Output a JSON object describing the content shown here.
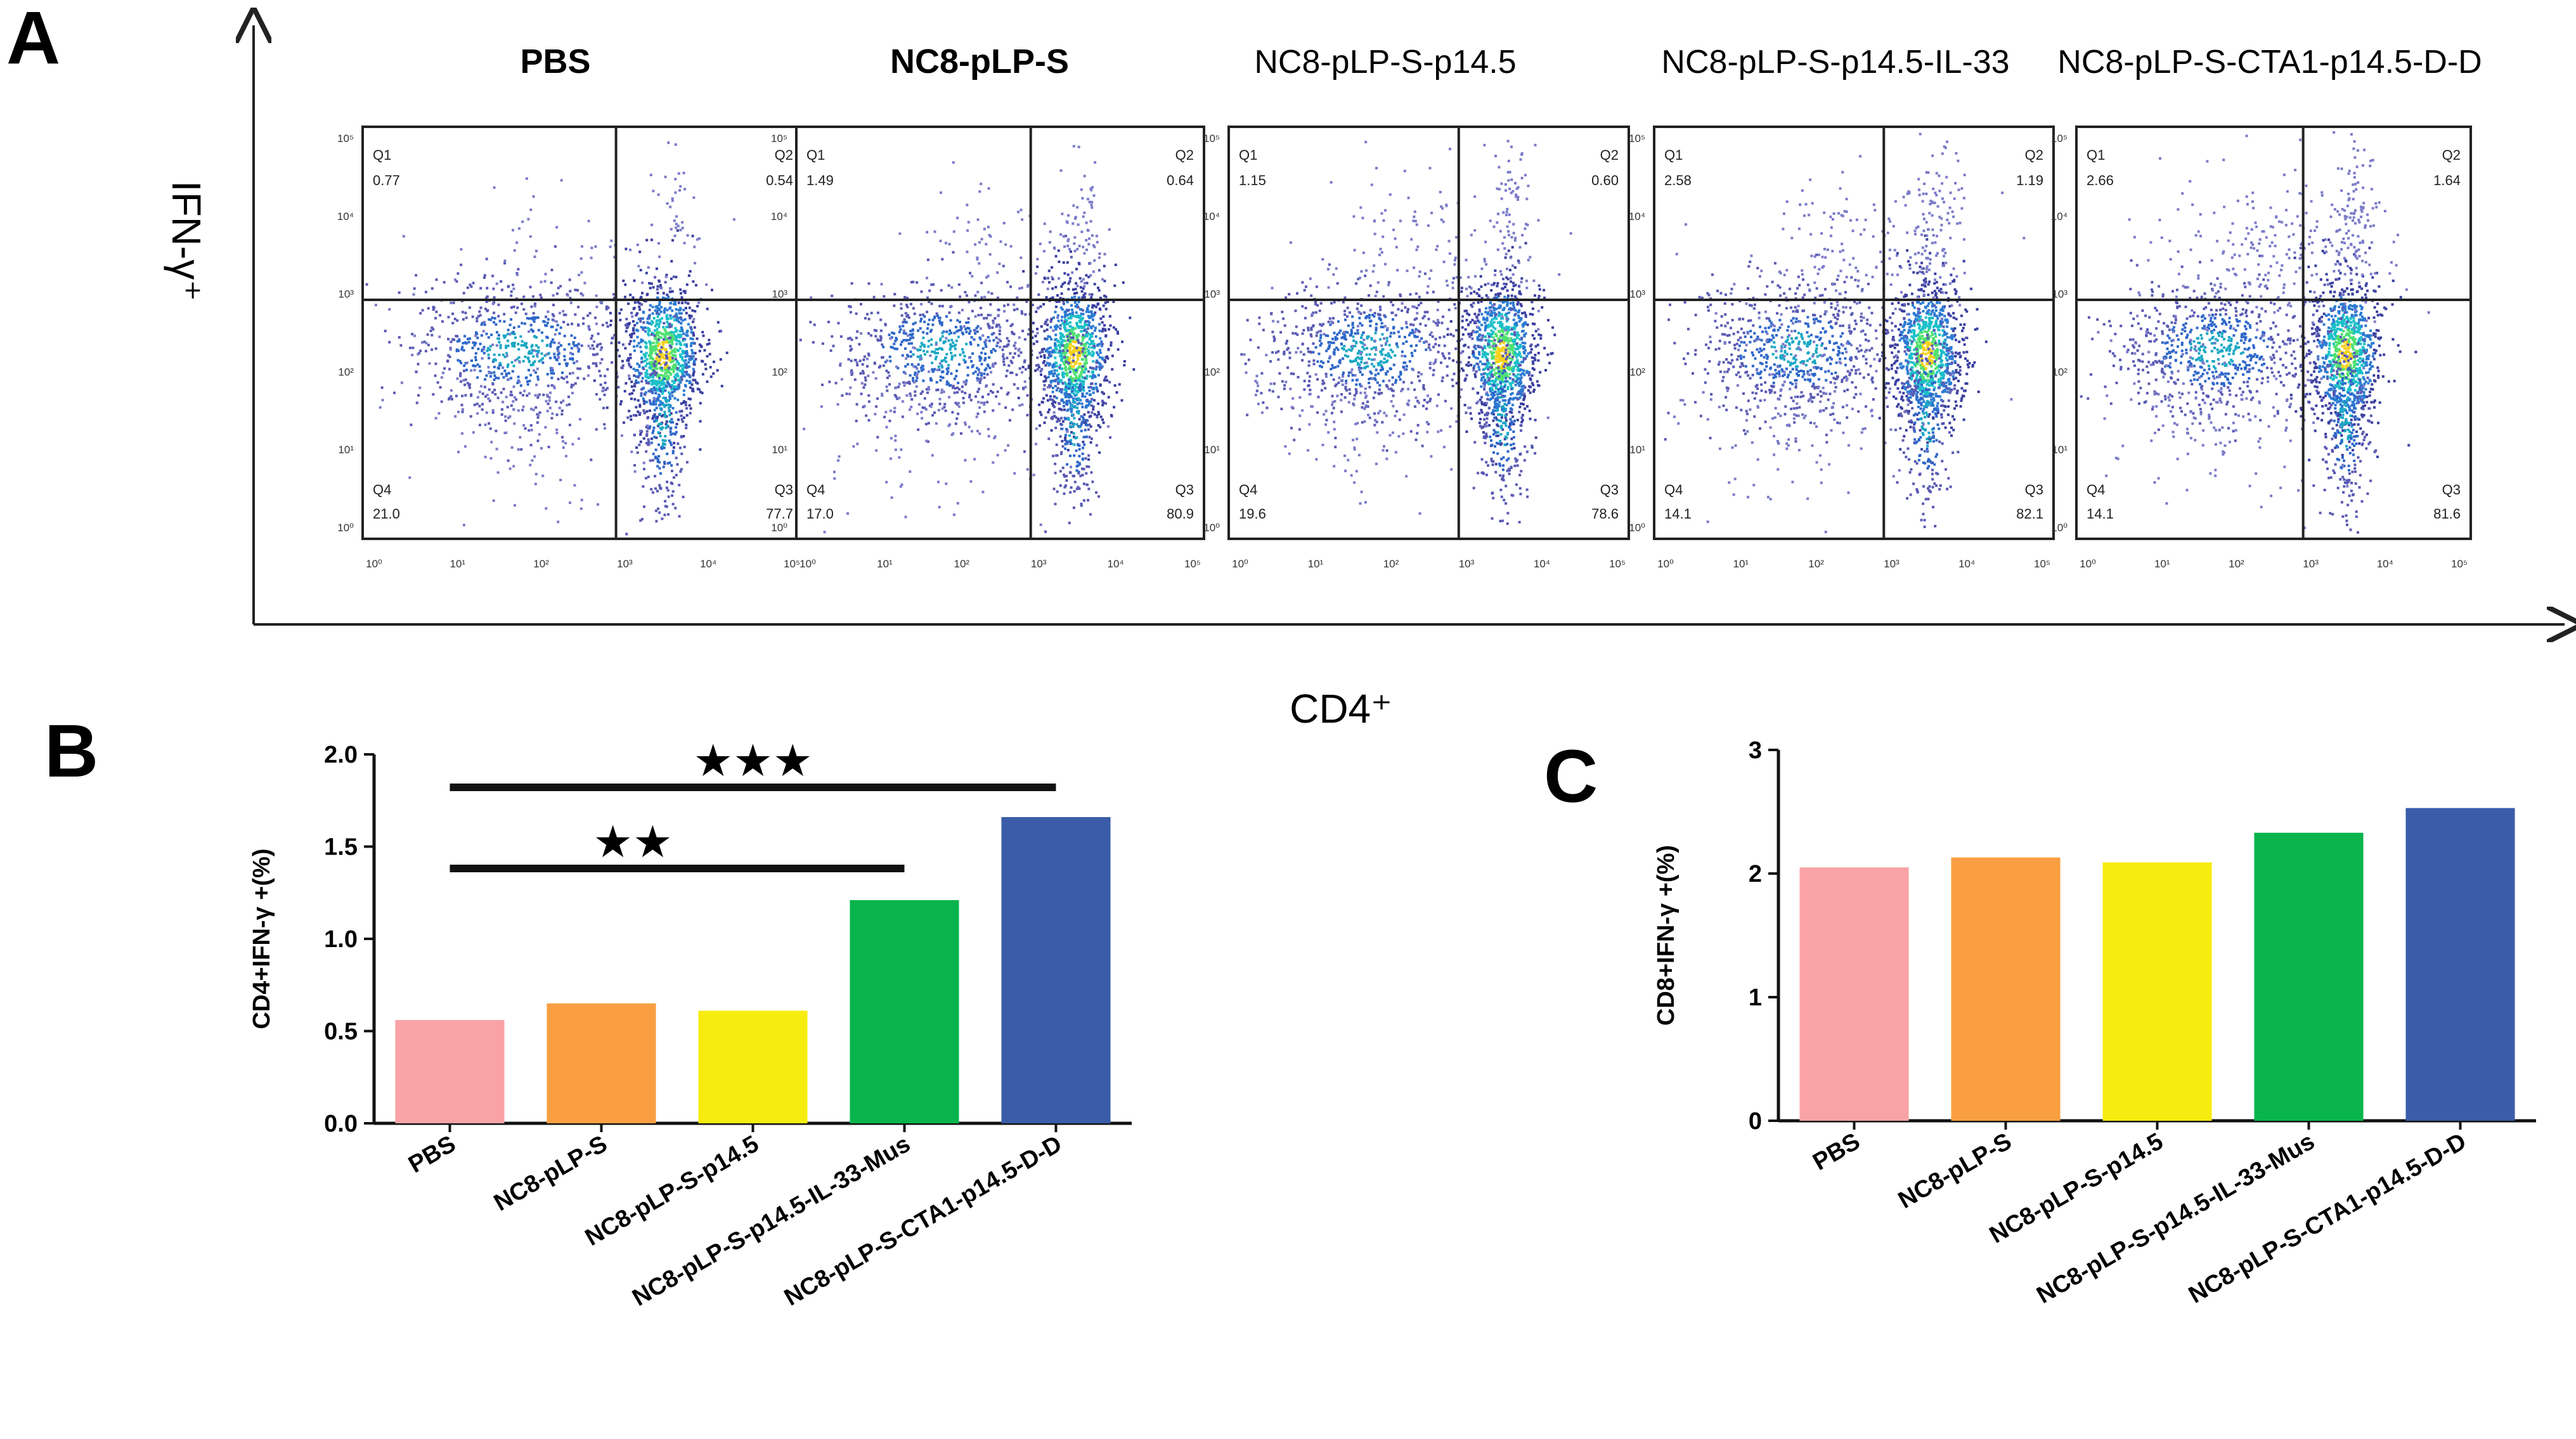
{
  "panels": {
    "a_letter": "A",
    "b_letter": "B",
    "c_letter": "C"
  },
  "flow_panel": {
    "y_axis_label": "IFN-γ⁺",
    "x_axis_label": "CD4⁺",
    "tick_labels": [
      "10⁰",
      "10¹",
      "10²",
      "10³",
      "10⁴",
      "10⁵"
    ],
    "quadrant_names": [
      "Q1",
      "Q2",
      "Q3",
      "Q4"
    ],
    "plots": [
      {
        "title": "PBS",
        "q1": "0.77",
        "q2": "0.54",
        "q3": "77.7",
        "q4": "21.0"
      },
      {
        "title": "NC8-pLP-S",
        "q1": "1.49",
        "q2": "0.64",
        "q3": "80.9",
        "q4": "17.0"
      },
      {
        "title": "NC8-pLP-S-p14.5",
        "q1": "1.15",
        "q2": "0.60",
        "q3": "78.6",
        "q4": "19.6"
      },
      {
        "title": "NC8-pLP-S-p14.5-IL-33",
        "q1": "2.58",
        "q2": "1.19",
        "q3": "82.1",
        "q4": "14.1"
      },
      {
        "title": "NC8-pLP-S-CTA1-p14.5-D-D",
        "q1": "2.66",
        "q2": "1.64",
        "q3": "81.6",
        "q4": "14.1"
      }
    ]
  },
  "chart_data": [
    {
      "type": "bar",
      "panel": "B",
      "categories": [
        "PBS",
        "NC8-pLP-S",
        "NC8-pLP-S-p14.5",
        "NC8-pLP-S-p14.5-IL-33-Mus",
        "NC8-pLP-S-CTA1-p14.5-D-D"
      ],
      "values": [
        0.56,
        0.65,
        0.61,
        1.21,
        1.66
      ],
      "colors": [
        "#f9a3a6",
        "#f99f42",
        "#f7ec0f",
        "#08b44b",
        "#3a5ca9"
      ],
      "ylabel": "CD4+IFN-γ +(%)",
      "ylim": [
        0,
        2.0
      ],
      "yticks": [
        "0.0",
        "0.5",
        "1.0",
        "1.5",
        "2.0"
      ],
      "significance": [
        {
          "from": 0,
          "to": 4,
          "label": "★★★"
        },
        {
          "from": 0,
          "to": 3,
          "label": "★★"
        }
      ]
    },
    {
      "type": "bar",
      "panel": "C",
      "categories": [
        "PBS",
        "NC8-pLP-S",
        "NC8-pLP-S-p14.5",
        "NC8-pLP-S-p14.5-IL-33-Mus",
        "NC8-pLP-S-CTA1-p14.5-D-D"
      ],
      "values": [
        2.05,
        2.13,
        2.09,
        2.33,
        2.53
      ],
      "colors": [
        "#f9a3a6",
        "#f99f42",
        "#f7ec0f",
        "#08b44b",
        "#3a5ca9"
      ],
      "ylabel": "CD8+IFN-γ +(%)",
      "ylim": [
        0,
        3
      ],
      "yticks": [
        "0",
        "1",
        "2",
        "3"
      ]
    }
  ]
}
